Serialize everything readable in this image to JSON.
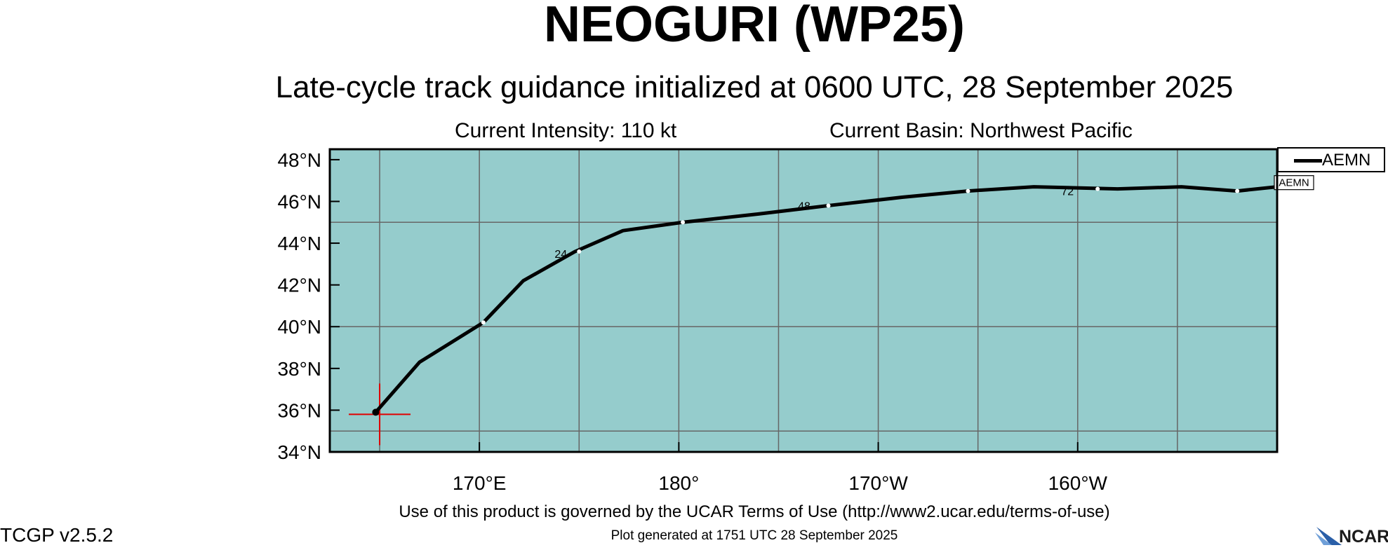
{
  "header": {
    "title": "NEOGURI (WP25)",
    "subtitle": "Late-cycle track guidance initialized at 0600 UTC, 28 September 2025",
    "intensity": "Current Intensity: 110 kt",
    "basin": "Current Basin: Northwest Pacific"
  },
  "map": {
    "ocean_color": "#95cccc",
    "grid_color": "#666666",
    "lon_range": [
      162.5,
      210
    ],
    "lat_range": [
      34,
      48.5
    ],
    "lat_ticks": [
      {
        "value": 34,
        "label": "34°N"
      },
      {
        "value": 36,
        "label": "36°N"
      },
      {
        "value": 38,
        "label": "38°N"
      },
      {
        "value": 40,
        "label": "40°N"
      },
      {
        "value": 42,
        "label": "42°N"
      },
      {
        "value": 44,
        "label": "44°N"
      },
      {
        "value": 46,
        "label": "46°N"
      },
      {
        "value": 48,
        "label": "48°N"
      }
    ],
    "lon_ticks": [
      {
        "value": 170,
        "label": "170°E"
      },
      {
        "value": 180,
        "label": "180°"
      },
      {
        "value": 190,
        "label": "170°W"
      },
      {
        "value": 200,
        "label": "160°W"
      }
    ],
    "grid_lons": [
      165,
      170,
      175,
      180,
      185,
      190,
      195,
      200,
      205
    ],
    "grid_lats": [
      35,
      40,
      45
    ],
    "current_position": {
      "lon": 165,
      "lat": 35.8
    },
    "track": {
      "name": "AEMN",
      "color": "#000000",
      "points": [
        {
          "lon": 164.8,
          "lat": 35.9
        },
        {
          "lon": 167.0,
          "lat": 38.3
        },
        {
          "lon": 170.2,
          "lat": 40.2
        },
        {
          "lon": 172.2,
          "lat": 42.2
        },
        {
          "lon": 174.8,
          "lat": 43.6
        },
        {
          "lon": 177.2,
          "lat": 44.6
        },
        {
          "lon": 180.2,
          "lat": 45.0
        },
        {
          "lon": 184.0,
          "lat": 45.4
        },
        {
          "lon": 187.5,
          "lat": 45.8
        },
        {
          "lon": 191.2,
          "lat": 46.2
        },
        {
          "lon": 194.5,
          "lat": 46.5
        },
        {
          "lon": 197.8,
          "lat": 46.7
        },
        {
          "lon": 202.0,
          "lat": 46.6
        },
        {
          "lon": 205.2,
          "lat": 46.7
        },
        {
          "lon": 208.0,
          "lat": 46.5
        },
        {
          "lon": 210.0,
          "lat": 46.7
        }
      ],
      "markers": [
        {
          "lon": 170.2,
          "lat": 40.2
        },
        {
          "lon": 175.0,
          "lat": 43.6
        },
        {
          "lon": 180.2,
          "lat": 45.0
        },
        {
          "lon": 187.5,
          "lat": 45.8
        },
        {
          "lon": 194.5,
          "lat": 46.5
        },
        {
          "lon": 201.0,
          "lat": 46.6
        },
        {
          "lon": 208.0,
          "lat": 46.5
        }
      ],
      "hour_labels": [
        {
          "text": "24",
          "lon": 174.4,
          "lat": 43.3
        },
        {
          "text": "48",
          "lon": 186.6,
          "lat": 45.6
        },
        {
          "text": "72",
          "lon": 199.8,
          "lat": 46.3
        }
      ],
      "end_label": {
        "text": "AEMN",
        "lon": 210.0,
        "lat": 46.9
      }
    }
  },
  "legend": {
    "label": "AEMN"
  },
  "footer": {
    "terms": "Use of this product is governed by the UCAR Terms of Use (http://www2.ucar.edu/terms-of-use)",
    "version": "TCGP v2.5.2",
    "generated": "Plot generated at 1751 UTC   28 September 2025",
    "logo_text": "NCAR"
  }
}
